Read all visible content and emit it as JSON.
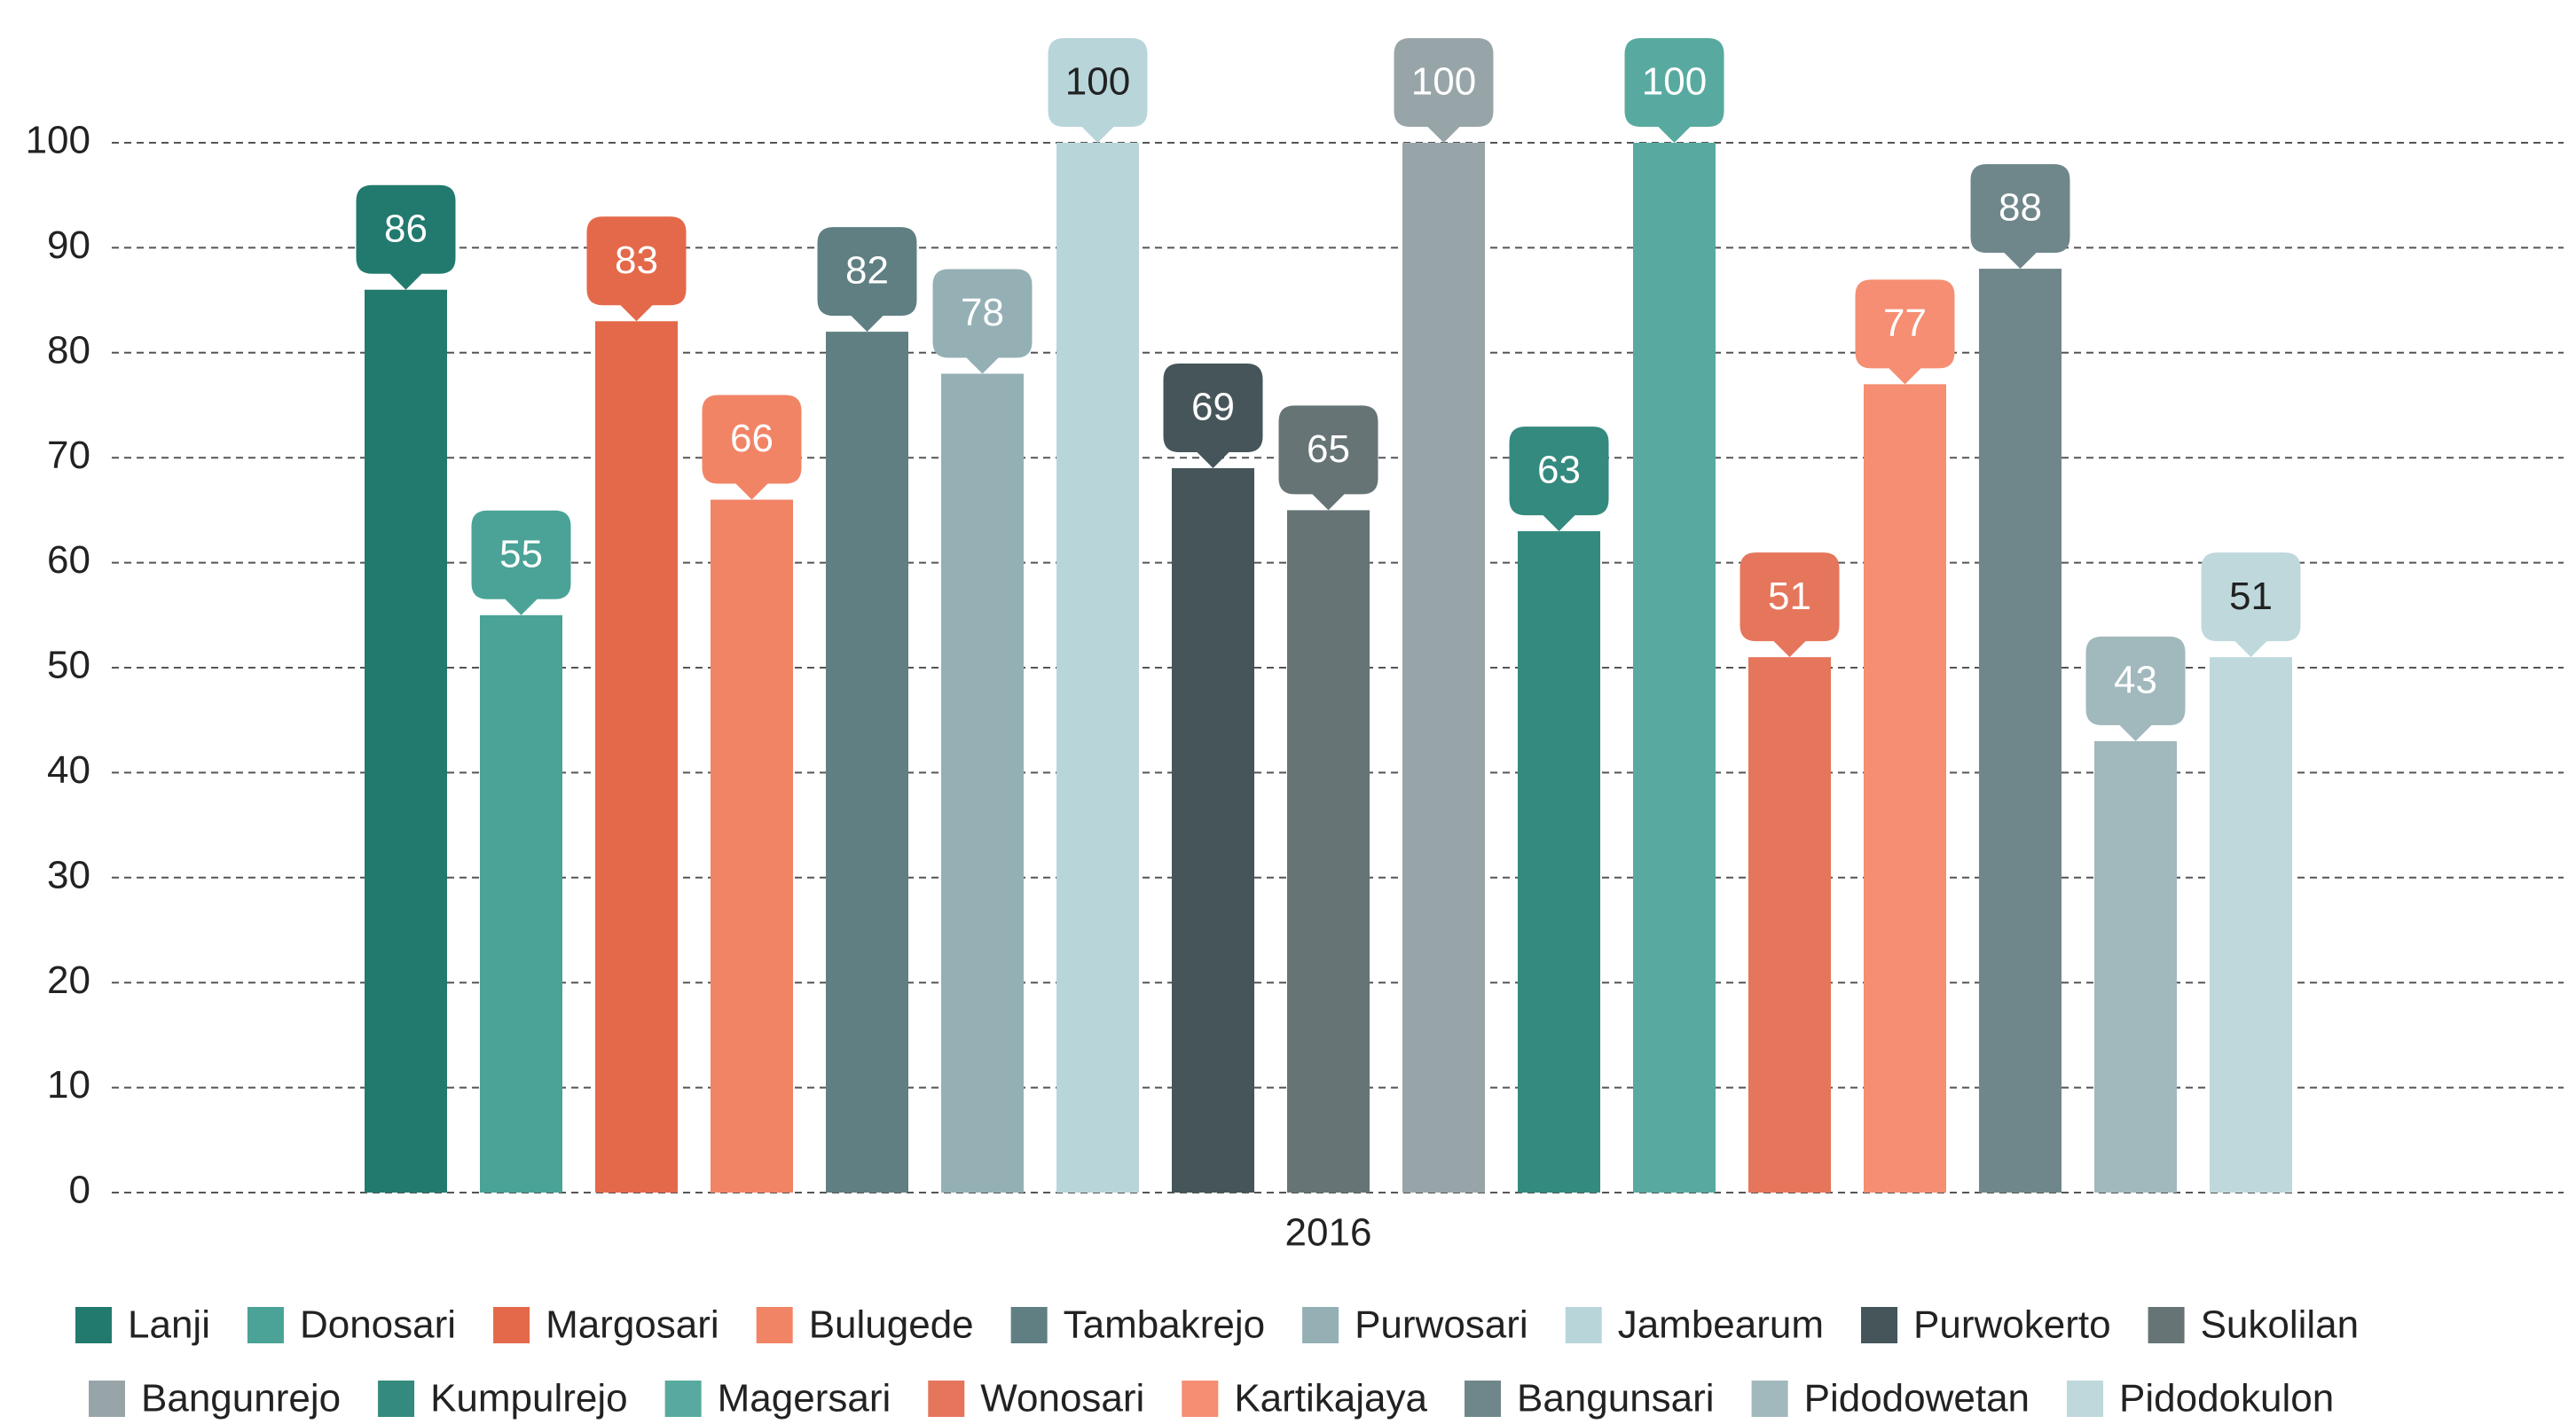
{
  "chart_data": {
    "type": "bar",
    "categories": [
      "2016"
    ],
    "series": [
      {
        "name": "Lanji",
        "color": "#227a6e",
        "values": [
          86
        ]
      },
      {
        "name": "Donosari",
        "color": "#4aa396",
        "values": [
          55
        ]
      },
      {
        "name": "Margosari",
        "color": "#e4694a",
        "values": [
          83
        ]
      },
      {
        "name": "Bulugede",
        "color": "#f28466",
        "values": [
          66
        ]
      },
      {
        "name": "Tambakrejo",
        "color": "#5f7f83",
        "values": [
          82
        ]
      },
      {
        "name": "Purwosari",
        "color": "#94b0b5",
        "values": [
          78
        ]
      },
      {
        "name": "Jambearum",
        "color": "#b8d5da",
        "values": [
          100
        ]
      },
      {
        "name": "Purwokerto",
        "color": "#455559",
        "values": [
          69
        ]
      },
      {
        "name": "Sukolilan",
        "color": "#667476",
        "values": [
          65
        ]
      },
      {
        "name": "Bangunrejo",
        "color": "#98a5a8",
        "values": [
          100
        ]
      },
      {
        "name": "Kumpulrejo",
        "color": "#348a7e",
        "values": [
          63
        ]
      },
      {
        "name": "Magersari",
        "color": "#58aaa0",
        "values": [
          100
        ]
      },
      {
        "name": "Wonosari",
        "color": "#e5765c",
        "values": [
          51
        ]
      },
      {
        "name": "Kartikajaya",
        "color": "#f58e72",
        "values": [
          77
        ]
      },
      {
        "name": "Bangunsari",
        "color": "#6f878b",
        "values": [
          88
        ]
      },
      {
        "name": "Pidodowetan",
        "color": "#a1b8bd",
        "values": [
          43
        ]
      },
      {
        "name": "Pidodokulon",
        "color": "#bfd8dc",
        "values": [
          51
        ]
      }
    ],
    "ylim": [
      0,
      100
    ],
    "yticks": [
      0,
      10,
      20,
      30,
      40,
      50,
      60,
      70,
      80,
      90,
      100
    ],
    "grid": true,
    "legend": "bottom"
  }
}
